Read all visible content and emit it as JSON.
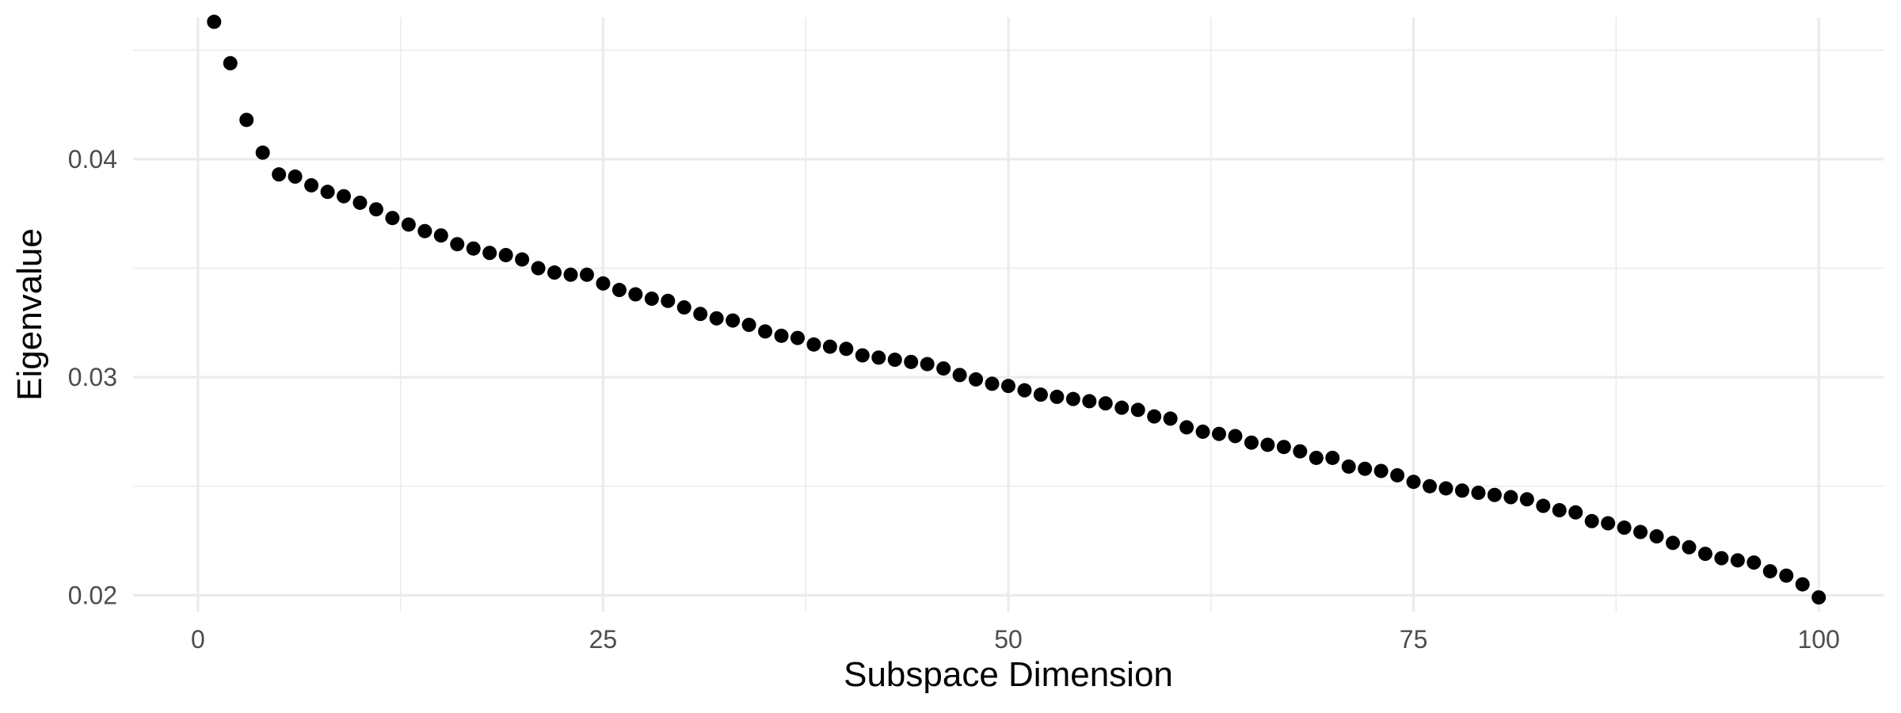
{
  "chart_data": {
    "type": "scatter",
    "title": "",
    "xlabel": "Subspace Dimension",
    "ylabel": "Eigenvalue",
    "xlim": [
      -4,
      104
    ],
    "ylim": [
      0.01925,
      0.0465
    ],
    "x_ticks": [
      0,
      25,
      50,
      75,
      100
    ],
    "x_tick_labels": [
      "0",
      "25",
      "50",
      "75",
      "100"
    ],
    "y_ticks": [
      0.02,
      0.03,
      0.04
    ],
    "y_tick_labels": [
      "0.02",
      "0.03",
      "0.04"
    ],
    "grid": true,
    "legend": "none",
    "point_color": "#000000",
    "series": [
      {
        "x": [
          1,
          2,
          3,
          4,
          5,
          6,
          7,
          8,
          9,
          10,
          11,
          12,
          13,
          14,
          15,
          16,
          17,
          18,
          19,
          20,
          21,
          22,
          23,
          24,
          25,
          26,
          27,
          28,
          29,
          30,
          31,
          32,
          33,
          34,
          35,
          36,
          37,
          38,
          39,
          40,
          41,
          42,
          43,
          44,
          45,
          46,
          47,
          48,
          49,
          50,
          51,
          52,
          53,
          54,
          55,
          56,
          57,
          58,
          59,
          60,
          61,
          62,
          63,
          64,
          65,
          66,
          67,
          68,
          69,
          70,
          71,
          72,
          73,
          74,
          75,
          76,
          77,
          78,
          79,
          80,
          81,
          82,
          83,
          84,
          85,
          86,
          87,
          88,
          89,
          90,
          91,
          92,
          93,
          94,
          95,
          96,
          97,
          98,
          99,
          100
        ],
        "y": [
          0.0463,
          0.0444,
          0.0418,
          0.0403,
          0.0393,
          0.0392,
          0.0388,
          0.0385,
          0.0383,
          0.038,
          0.0377,
          0.0373,
          0.037,
          0.0367,
          0.0365,
          0.0361,
          0.0359,
          0.0357,
          0.0356,
          0.0354,
          0.035,
          0.0348,
          0.0347,
          0.0347,
          0.0343,
          0.034,
          0.0338,
          0.0336,
          0.0335,
          0.0332,
          0.0329,
          0.0327,
          0.0326,
          0.0324,
          0.0321,
          0.0319,
          0.0318,
          0.0315,
          0.0314,
          0.0313,
          0.031,
          0.0309,
          0.0308,
          0.0307,
          0.0306,
          0.0304,
          0.0301,
          0.0299,
          0.0297,
          0.0296,
          0.0294,
          0.0292,
          0.0291,
          0.029,
          0.0289,
          0.0288,
          0.0286,
          0.0285,
          0.0282,
          0.0281,
          0.0277,
          0.0275,
          0.0274,
          0.0273,
          0.027,
          0.0269,
          0.0268,
          0.0266,
          0.0263,
          0.0263,
          0.0259,
          0.0258,
          0.0257,
          0.0255,
          0.0252,
          0.025,
          0.0249,
          0.0248,
          0.0247,
          0.0246,
          0.0245,
          0.0244,
          0.0241,
          0.0239,
          0.0238,
          0.0234,
          0.0233,
          0.0231,
          0.0229,
          0.0227,
          0.0224,
          0.0222,
          0.0219,
          0.0217,
          0.0216,
          0.0215,
          0.0211,
          0.0209,
          0.0205,
          0.0199
        ]
      }
    ]
  }
}
